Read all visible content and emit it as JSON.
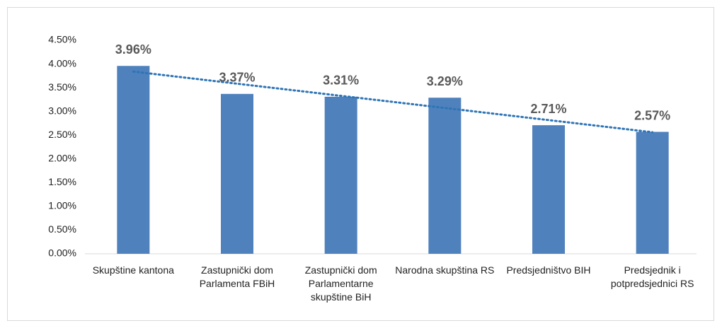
{
  "chart_data": {
    "type": "bar",
    "categories": [
      "Skupštine kantona",
      "Zastupnički dom Parlamenta FBiH",
      "Zastupnički dom Parlamentarne skupštine BiH",
      "Narodna skupština RS",
      "Predsjedništvo BIH",
      "Predsjednik i potpredsjednici RS"
    ],
    "values": [
      3.96,
      3.37,
      3.31,
      3.29,
      2.71,
      2.57
    ],
    "value_labels": [
      "3.96%",
      "3.37%",
      "3.31%",
      "3.29%",
      "2.71%",
      "2.57%"
    ],
    "color": "#4f81bd",
    "trendline": {
      "type": "linear",
      "color": "#2e75b6"
    },
    "ylim": [
      0,
      4.5
    ],
    "yticks": [
      {
        "value": 0,
        "label": "0.00%"
      },
      {
        "value": 0.5,
        "label": "0.50%"
      },
      {
        "value": 1,
        "label": "1.00%"
      },
      {
        "value": 1.5,
        "label": "1.50%"
      },
      {
        "value": 2,
        "label": "2.00%"
      },
      {
        "value": 2.5,
        "label": "2.50%"
      },
      {
        "value": 3,
        "label": "3.00%"
      },
      {
        "value": 3.5,
        "label": "3.50%"
      },
      {
        "value": 4,
        "label": "4.00%"
      },
      {
        "value": 4.5,
        "label": "4.50%"
      }
    ],
    "grid": false
  }
}
